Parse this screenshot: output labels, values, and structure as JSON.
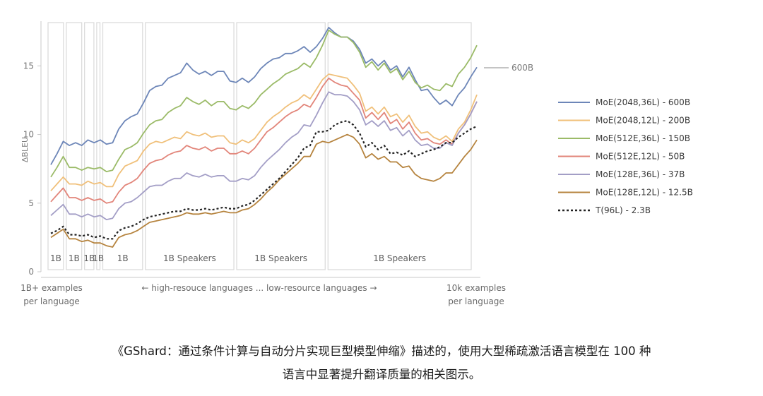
{
  "chart_data": {
    "type": "line",
    "ylabel": "ΔBLEU",
    "ylim": [
      0,
      18
    ],
    "yticks": [
      0,
      5,
      10,
      15
    ],
    "x_axis": {
      "left_label_1": "1B+ examples",
      "left_label_2": "per language",
      "middle_label": "← high-resouce languages   ...   low-resource languages →",
      "right_label_1": "10k examples",
      "right_label_2": "per language"
    },
    "callout": "600B",
    "regions": [
      {
        "label": "1B",
        "from": 0,
        "to": 3
      },
      {
        "label": "1B",
        "from": 3,
        "to": 6
      },
      {
        "label": "1B",
        "from": 6,
        "to": 8
      },
      {
        "label": "1B",
        "from": 8,
        "to": 9
      },
      {
        "label": "1B",
        "from": 9,
        "to": 16
      },
      {
        "label": "1B Speakers",
        "from": 16,
        "to": 31
      },
      {
        "label": "1B Speakers",
        "from": 31,
        "to": 46
      },
      {
        "label": "1B Speakers",
        "from": 46,
        "to": 70
      }
    ],
    "series": [
      {
        "name": "MoE(2048,36L) - 600B",
        "color": "#6d86b8",
        "dash": "",
        "values": [
          7.8,
          8.6,
          9.5,
          9.2,
          9.4,
          9.2,
          9.6,
          9.4,
          9.6,
          9.3,
          9.4,
          10.4,
          11.0,
          11.3,
          11.5,
          12.3,
          13.2,
          13.5,
          13.6,
          14.1,
          14.3,
          14.5,
          15.2,
          14.7,
          14.4,
          14.6,
          14.3,
          14.6,
          14.6,
          13.9,
          13.8,
          14.1,
          13.8,
          14.2,
          14.8,
          15.2,
          15.5,
          15.6,
          15.9,
          15.9,
          16.1,
          16.4,
          16.0,
          16.4,
          17.0,
          17.8,
          17.4,
          17.1,
          17.1,
          16.8,
          16.2,
          15.2,
          15.5,
          15.0,
          15.4,
          14.7,
          15.0,
          14.2,
          14.9,
          14.0,
          13.2,
          13.3,
          12.7,
          12.2,
          12.5,
          12.1,
          12.9,
          13.4,
          14.2,
          14.9
        ]
      },
      {
        "name": "MoE(2048,12L) - 200B",
        "color": "#f0c07a",
        "dash": "",
        "values": [
          5.9,
          6.4,
          6.9,
          6.4,
          6.4,
          6.3,
          6.6,
          6.4,
          6.5,
          6.2,
          6.2,
          7.1,
          7.7,
          7.9,
          8.1,
          8.8,
          9.3,
          9.5,
          9.4,
          9.6,
          9.8,
          9.7,
          10.2,
          10.0,
          9.9,
          10.1,
          9.8,
          9.9,
          9.9,
          9.4,
          9.3,
          9.6,
          9.4,
          9.7,
          10.3,
          10.9,
          11.3,
          11.6,
          12.0,
          12.3,
          12.5,
          12.9,
          12.6,
          13.3,
          14.0,
          14.4,
          14.3,
          14.2,
          14.1,
          13.6,
          13.0,
          11.7,
          12.0,
          11.5,
          12.0,
          11.3,
          11.5,
          10.9,
          11.4,
          10.6,
          10.1,
          10.2,
          9.8,
          9.6,
          9.9,
          9.5,
          10.4,
          10.9,
          11.8,
          12.9
        ]
      },
      {
        "name": "MoE(512E,36L) - 150B",
        "color": "#9bbb68",
        "dash": "",
        "values": [
          6.9,
          7.6,
          8.4,
          7.6,
          7.6,
          7.4,
          7.6,
          7.5,
          7.6,
          7.3,
          7.4,
          8.2,
          8.9,
          9.1,
          9.4,
          10.1,
          10.7,
          11.0,
          11.1,
          11.6,
          11.9,
          12.1,
          12.7,
          12.4,
          12.2,
          12.5,
          12.1,
          12.4,
          12.4,
          11.9,
          11.8,
          12.1,
          11.9,
          12.3,
          12.9,
          13.3,
          13.7,
          14.0,
          14.4,
          14.6,
          14.8,
          15.2,
          14.9,
          15.6,
          16.5,
          17.6,
          17.3,
          17.1,
          17.1,
          16.7,
          16.0,
          14.9,
          15.3,
          14.7,
          15.2,
          14.5,
          14.8,
          14.0,
          14.6,
          13.8,
          13.4,
          13.6,
          13.3,
          13.2,
          13.7,
          13.5,
          14.4,
          14.9,
          15.6,
          16.5
        ]
      },
      {
        "name": "MoE(512E,12L) - 50B",
        "color": "#e2857a",
        "dash": "",
        "values": [
          5.1,
          5.6,
          6.1,
          5.4,
          5.4,
          5.2,
          5.4,
          5.2,
          5.3,
          5.0,
          5.1,
          5.8,
          6.3,
          6.5,
          6.8,
          7.4,
          7.9,
          8.1,
          8.2,
          8.5,
          8.7,
          8.8,
          9.2,
          9.0,
          8.9,
          9.1,
          8.8,
          9.0,
          9.0,
          8.6,
          8.6,
          8.8,
          8.6,
          9.0,
          9.6,
          10.2,
          10.5,
          10.9,
          11.3,
          11.6,
          11.8,
          12.2,
          12.0,
          12.7,
          13.5,
          14.1,
          13.8,
          13.6,
          13.5,
          13.0,
          12.5,
          11.2,
          11.6,
          11.1,
          11.6,
          10.8,
          11.1,
          10.4,
          10.9,
          10.1,
          9.6,
          9.7,
          9.4,
          9.3,
          9.6,
          9.3,
          10.1,
          10.7,
          11.5,
          12.4
        ]
      },
      {
        "name": "MoE(128E,36L) - 37B",
        "color": "#a39ec6",
        "dash": "",
        "values": [
          4.1,
          4.5,
          4.9,
          4.2,
          4.2,
          4.0,
          4.2,
          4.0,
          4.1,
          3.8,
          3.9,
          4.6,
          5.0,
          5.1,
          5.4,
          5.8,
          6.2,
          6.3,
          6.3,
          6.6,
          6.8,
          6.8,
          7.2,
          7.0,
          6.9,
          7.1,
          6.9,
          7.0,
          7.0,
          6.6,
          6.6,
          6.8,
          6.7,
          7.0,
          7.6,
          8.1,
          8.5,
          8.9,
          9.4,
          9.8,
          10.1,
          10.7,
          10.6,
          11.4,
          12.3,
          13.1,
          12.9,
          12.9,
          12.8,
          12.4,
          11.8,
          10.7,
          11.0,
          10.6,
          11.0,
          10.3,
          10.5,
          9.9,
          10.3,
          9.6,
          9.2,
          9.3,
          9.0,
          9.0,
          9.4,
          9.2,
          10.1,
          10.7,
          11.5,
          12.4
        ]
      },
      {
        "name": "MoE(128E,12L) - 12.5B",
        "color": "#b6843f",
        "dash": "",
        "values": [
          2.5,
          2.8,
          3.1,
          2.4,
          2.4,
          2.2,
          2.3,
          2.1,
          2.1,
          1.9,
          1.8,
          2.5,
          2.7,
          2.8,
          3.0,
          3.3,
          3.6,
          3.7,
          3.8,
          3.9,
          4.0,
          4.1,
          4.3,
          4.2,
          4.2,
          4.3,
          4.2,
          4.3,
          4.4,
          4.3,
          4.3,
          4.5,
          4.6,
          4.9,
          5.3,
          5.8,
          6.2,
          6.7,
          7.1,
          7.5,
          7.9,
          8.4,
          8.4,
          9.3,
          9.5,
          9.4,
          9.6,
          9.8,
          10.0,
          9.8,
          9.3,
          8.3,
          8.6,
          8.2,
          8.4,
          8.0,
          8.0,
          7.6,
          7.7,
          7.1,
          6.8,
          6.7,
          6.6,
          6.8,
          7.2,
          7.2,
          7.8,
          8.4,
          8.9,
          9.6
        ]
      },
      {
        "name": "T(96L) - 2.3B",
        "color": "#222222",
        "dash": "3,3",
        "values": [
          2.8,
          3.0,
          3.3,
          2.7,
          2.7,
          2.6,
          2.7,
          2.5,
          2.6,
          2.4,
          2.4,
          3.0,
          3.2,
          3.3,
          3.5,
          3.8,
          4.0,
          4.1,
          4.2,
          4.3,
          4.4,
          4.4,
          4.6,
          4.5,
          4.5,
          4.6,
          4.5,
          4.6,
          4.7,
          4.6,
          4.6,
          4.8,
          4.9,
          5.2,
          5.6,
          6.0,
          6.4,
          6.8,
          7.3,
          7.8,
          8.3,
          9.0,
          9.2,
          10.2,
          10.2,
          10.3,
          10.7,
          10.9,
          11.0,
          10.7,
          10.1,
          9.1,
          9.4,
          8.9,
          9.2,
          8.6,
          8.7,
          8.5,
          8.8,
          8.4,
          8.6,
          8.8,
          8.9,
          9.1,
          9.4,
          9.4,
          9.8,
          10.1,
          10.4,
          10.6
        ]
      }
    ]
  },
  "caption": {
    "line1": "《GShard：通过条件计算与自动分片实现巨型模型伸缩》描述的，使用大型稀疏激活语言模型在 100 种",
    "line2": "语言中显著提升翻译质量的相关图示。"
  }
}
